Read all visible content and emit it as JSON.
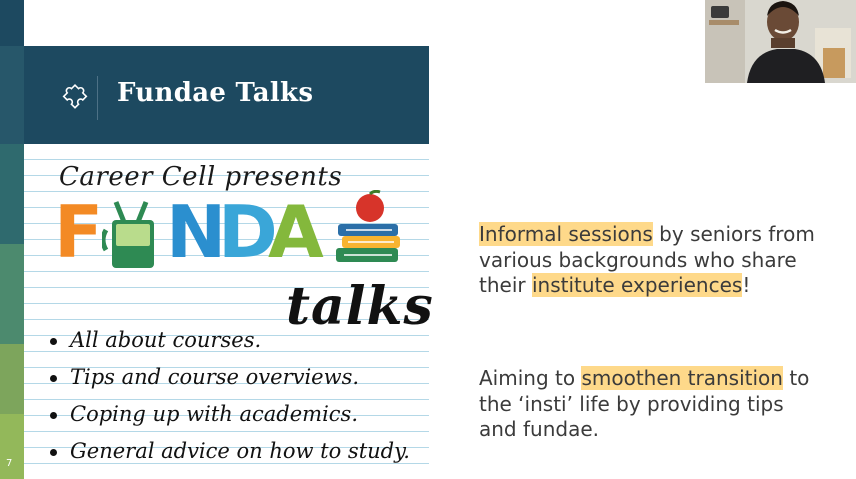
{
  "slide": {
    "number": "7",
    "header_title": "Fundae Talks",
    "strip_colors": [
      "#1d4960",
      "#27576a",
      "#2f6a6e",
      "#4c8a6e",
      "#7da55c",
      "#93b85a"
    ]
  },
  "notebook": {
    "presents": "Career Cell presents",
    "logo_letters": [
      {
        "ch": "F",
        "color": "#f38a24"
      },
      {
        "ch": "U",
        "color": "#2e8a53"
      },
      {
        "ch": "N",
        "color": "#2b8fcf"
      },
      {
        "ch": "D",
        "color": "#3aa6d8"
      },
      {
        "ch": "A",
        "color": "#84b83c"
      },
      {
        "ch": "E",
        "color": "#f7b431"
      }
    ],
    "talks": "talks",
    "bullets": [
      "All about courses.",
      "Tips and course overviews.",
      "Coping up with academics.",
      "General advice on how to study."
    ]
  },
  "right": {
    "p1": {
      "hl1": "Informal sessions",
      "t1": " by seniors from various backgrounds who share their ",
      "hl2": "institute experiences",
      "t2": "!"
    },
    "p2": {
      "t0": "Aiming to ",
      "hl1": "smoothen transition",
      "t1": " to the ‘insti’ life by providing tips and fundae."
    }
  },
  "colors": {
    "header_bg": "#1d4960",
    "highlight": "#fed98a",
    "notebook_rule": "#b4d8e7"
  },
  "icons": [
    "puzzle-icon",
    "webcam-participant"
  ]
}
